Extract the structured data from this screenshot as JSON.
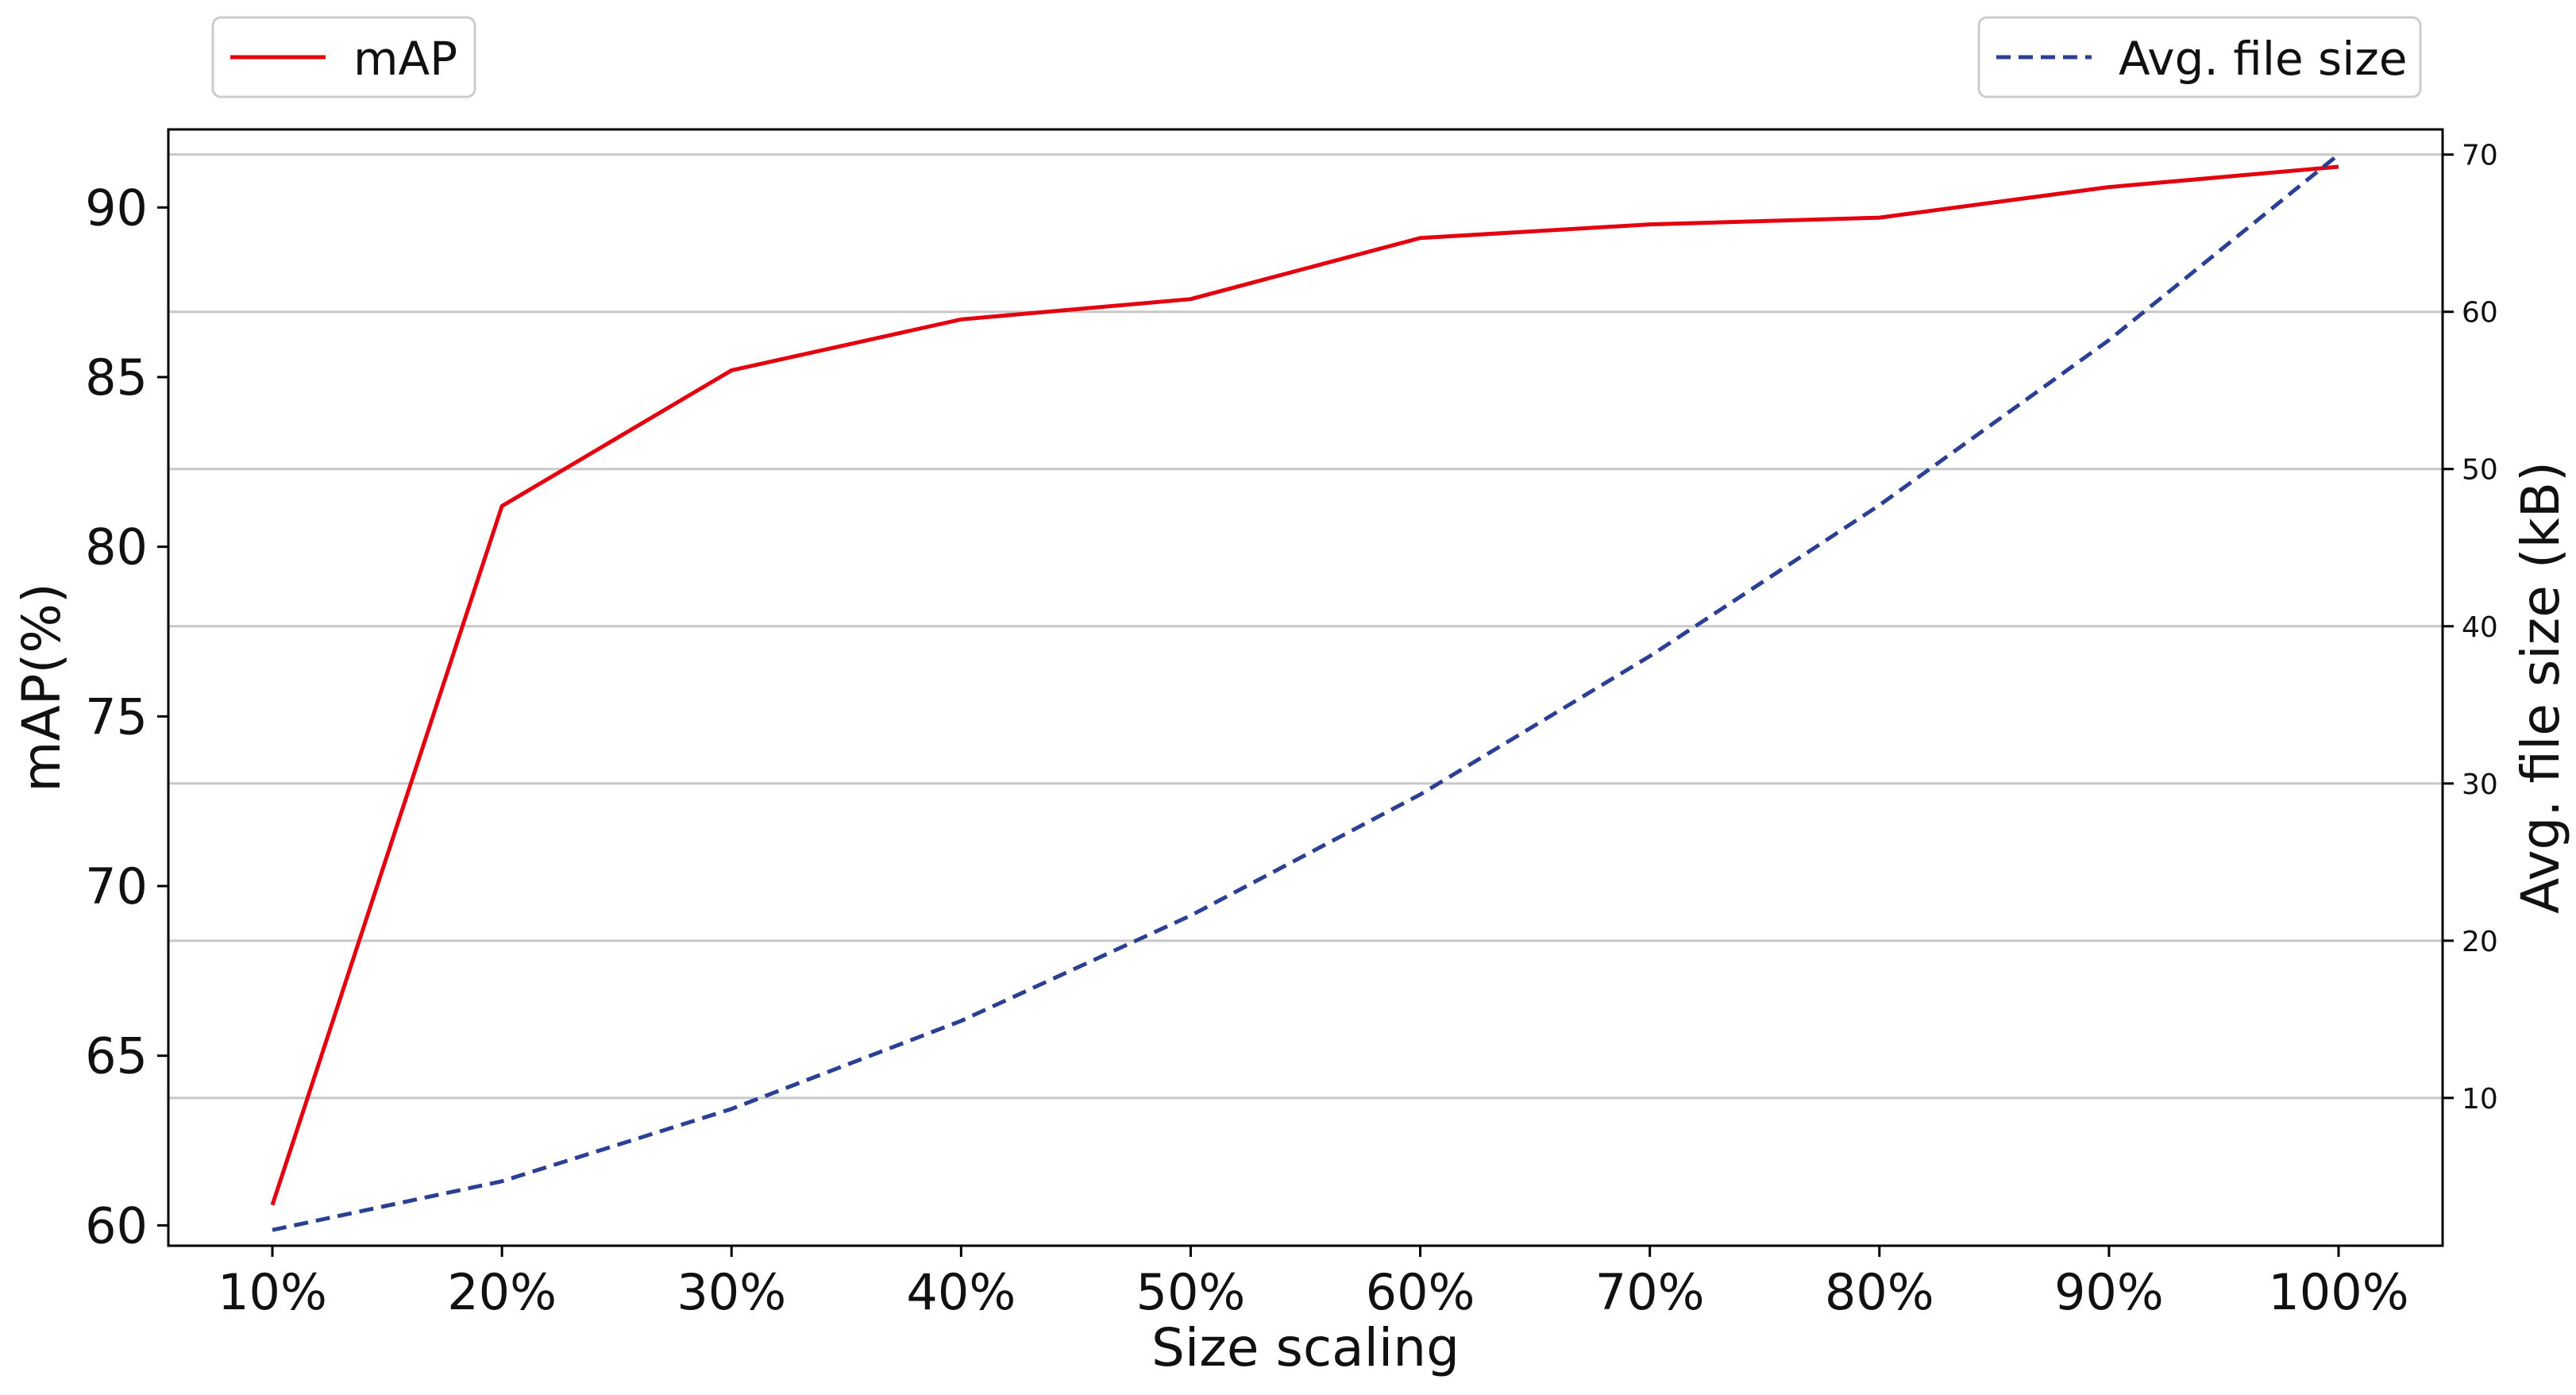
{
  "chart_data": {
    "type": "line",
    "title": "",
    "xlabel": "Size scaling",
    "ylabel": "mAP(%)",
    "y2label": "Avg. file size (kB)",
    "categories": [
      "10%",
      "20%",
      "30%",
      "40%",
      "50%",
      "60%",
      "70%",
      "80%",
      "90%",
      "100%"
    ],
    "ylim": [
      59.4,
      92.3
    ],
    "y2lim": [
      0.6,
      71.6
    ],
    "yticks": [
      60,
      65,
      70,
      75,
      80,
      85,
      90
    ],
    "y2ticks": [
      10,
      20,
      30,
      40,
      50,
      60,
      70
    ],
    "grid": "horizontal lines at right-axis ticks",
    "series": [
      {
        "name": "mAP",
        "axis": "left",
        "color": "#e3000f",
        "style": "solid",
        "values": [
          60.6,
          81.2,
          85.2,
          86.7,
          87.3,
          89.1,
          89.5,
          89.7,
          90.6,
          91.2
        ]
      },
      {
        "name": "Avg. file size",
        "axis": "right",
        "color": "#2b3f93",
        "style": "dashed",
        "values": [
          1.6,
          4.7,
          9.3,
          14.9,
          21.6,
          29.3,
          38.1,
          47.7,
          58.2,
          70.0
        ]
      }
    ],
    "legend": [
      {
        "label": "mAP",
        "placement": "top-left"
      },
      {
        "label": "Avg. file size",
        "placement": "top-right"
      }
    ]
  }
}
